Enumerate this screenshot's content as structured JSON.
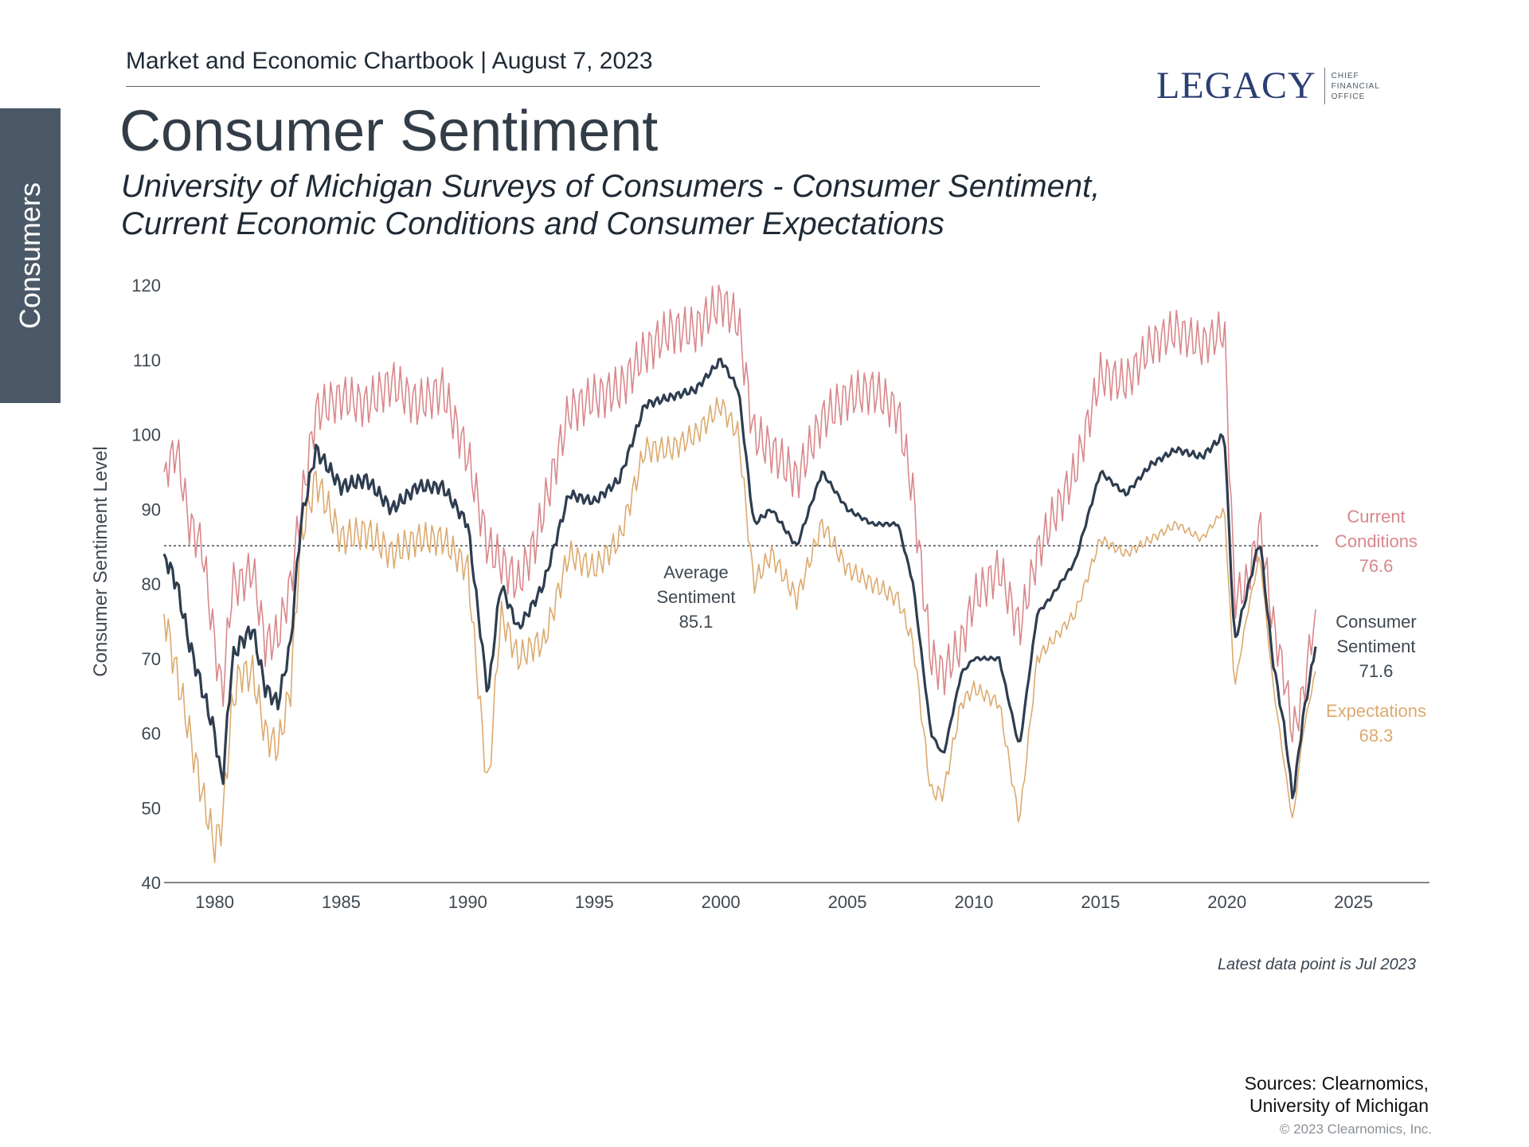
{
  "header": {
    "chartbook": "Market and Economic Chartbook | August 7, 2023",
    "logo_word": "LEGACY",
    "logo_tagline": "CHIEF\nFINANCIAL\nOFFICE"
  },
  "side_tab": {
    "label": "Consumers"
  },
  "page": {
    "title": "Consumer Sentiment",
    "subtitle_line1": "University of Michigan Surveys of Consumers - Consumer Sentiment,",
    "subtitle_line2": "Current Economic Conditions and Consumer Expectations"
  },
  "colors": {
    "sentiment": "#2e3d4f",
    "current": "#d9878b",
    "expectations": "#dcaa6f",
    "axis": "#555b61",
    "average_line": "#555b61"
  },
  "chart_data": {
    "type": "line",
    "ylabel": "Consumer Sentiment Level",
    "xlabel": "",
    "ylim": [
      40,
      120
    ],
    "xlim": [
      1978,
      2028
    ],
    "y_ticks": [
      40,
      50,
      60,
      70,
      80,
      90,
      100,
      110,
      120
    ],
    "x_ticks": [
      1980,
      1985,
      1990,
      1995,
      2000,
      2005,
      2010,
      2015,
      2020,
      2025
    ],
    "average": {
      "value": 85.1,
      "line1": "Average",
      "line2": "Sentiment",
      "line3": "85.1"
    },
    "series": [
      {
        "name": "Current Conditions",
        "label_lines": [
          "Current",
          "Conditions",
          "76.6"
        ],
        "points": [
          [
            1978,
            95
          ],
          [
            1978.5,
            98
          ],
          [
            1979,
            88
          ],
          [
            1979.5,
            85
          ],
          [
            1980,
            72
          ],
          [
            1980.3,
            65
          ],
          [
            1980.7,
            80
          ],
          [
            1981,
            80
          ],
          [
            1981.5,
            82
          ],
          [
            1982,
            72
          ],
          [
            1982.5,
            73
          ],
          [
            1983,
            80
          ],
          [
            1983.4,
            90
          ],
          [
            1984,
            103
          ],
          [
            1985,
            105
          ],
          [
            1986,
            104
          ],
          [
            1987,
            107
          ],
          [
            1988,
            104
          ],
          [
            1989,
            106
          ],
          [
            1990,
            97
          ],
          [
            1990.8,
            85
          ],
          [
            1991.3,
            83
          ],
          [
            1992,
            80
          ],
          [
            1992.7,
            86
          ],
          [
            1993,
            90
          ],
          [
            1994,
            103
          ],
          [
            1995,
            105
          ],
          [
            1996,
            106
          ],
          [
            1997,
            111
          ],
          [
            1998,
            114
          ],
          [
            1999,
            114
          ],
          [
            2000,
            118
          ],
          [
            2000.7,
            115
          ],
          [
            2001.3,
            100
          ],
          [
            2002,
            98
          ],
          [
            2003,
            94
          ],
          [
            2004,
            102
          ],
          [
            2005,
            105
          ],
          [
            2006,
            106
          ],
          [
            2007,
            103
          ],
          [
            2007.6,
            92
          ],
          [
            2008.3,
            70
          ],
          [
            2008.8,
            68
          ],
          [
            2009.5,
            72
          ],
          [
            2010,
            78
          ],
          [
            2011,
            82
          ],
          [
            2011.8,
            74
          ],
          [
            2012.5,
            84
          ],
          [
            2013,
            88
          ],
          [
            2014,
            95
          ],
          [
            2015,
            108
          ],
          [
            2016,
            107
          ],
          [
            2017,
            112
          ],
          [
            2018,
            114
          ],
          [
            2019,
            112
          ],
          [
            2019.9,
            114
          ],
          [
            2020.3,
            78
          ],
          [
            2020.8,
            80
          ],
          [
            2021.3,
            88
          ],
          [
            2021.8,
            75
          ],
          [
            2022.3,
            67
          ],
          [
            2022.6,
            60
          ],
          [
            2023,
            65
          ],
          [
            2023.5,
            76.6
          ]
        ]
      },
      {
        "name": "Consumer Sentiment",
        "label_lines": [
          "Consumer",
          "Sentiment",
          "71.6"
        ],
        "points": [
          [
            1978,
            84
          ],
          [
            1978.5,
            80
          ],
          [
            1979,
            72
          ],
          [
            1979.5,
            66
          ],
          [
            1980,
            60
          ],
          [
            1980.3,
            53
          ],
          [
            1980.7,
            70
          ],
          [
            1981,
            72
          ],
          [
            1981.5,
            74
          ],
          [
            1982,
            66
          ],
          [
            1982.5,
            64
          ],
          [
            1983,
            72
          ],
          [
            1983.4,
            88
          ],
          [
            1984,
            98
          ],
          [
            1985,
            93
          ],
          [
            1986,
            94
          ],
          [
            1987,
            90
          ],
          [
            1988,
            93
          ],
          [
            1989,
            93
          ],
          [
            1990,
            88
          ],
          [
            1990.8,
            65
          ],
          [
            1991.3,
            80
          ],
          [
            1992,
            74
          ],
          [
            1992.7,
            78
          ],
          [
            1993,
            80
          ],
          [
            1994,
            92
          ],
          [
            1995,
            91
          ],
          [
            1996,
            94
          ],
          [
            1997,
            104
          ],
          [
            1998,
            105
          ],
          [
            1999,
            106
          ],
          [
            2000,
            110
          ],
          [
            2000.7,
            106
          ],
          [
            2001.3,
            88
          ],
          [
            2002,
            90
          ],
          [
            2003,
            85
          ],
          [
            2004,
            95
          ],
          [
            2005,
            90
          ],
          [
            2006,
            88
          ],
          [
            2007,
            88
          ],
          [
            2007.6,
            80
          ],
          [
            2008.3,
            60
          ],
          [
            2008.8,
            57
          ],
          [
            2009.5,
            68
          ],
          [
            2010,
            70
          ],
          [
            2011,
            70
          ],
          [
            2011.8,
            58
          ],
          [
            2012.5,
            76
          ],
          [
            2013,
            78
          ],
          [
            2014,
            83
          ],
          [
            2015,
            95
          ],
          [
            2016,
            92
          ],
          [
            2017,
            96
          ],
          [
            2018,
            98
          ],
          [
            2019,
            97
          ],
          [
            2019.9,
            100
          ],
          [
            2020.3,
            72
          ],
          [
            2020.8,
            79
          ],
          [
            2021.3,
            86
          ],
          [
            2021.8,
            70
          ],
          [
            2022.3,
            60
          ],
          [
            2022.6,
            51
          ],
          [
            2023,
            62
          ],
          [
            2023.5,
            71.6
          ]
        ]
      },
      {
        "name": "Expectations",
        "label_lines": [
          "Expectations",
          "68.3"
        ],
        "points": [
          [
            1978,
            76
          ],
          [
            1978.5,
            68
          ],
          [
            1979,
            60
          ],
          [
            1979.5,
            52
          ],
          [
            1980,
            45
          ],
          [
            1980.3,
            48
          ],
          [
            1980.7,
            64
          ],
          [
            1981,
            68
          ],
          [
            1981.5,
            68
          ],
          [
            1982,
            60
          ],
          [
            1982.5,
            58
          ],
          [
            1983,
            66
          ],
          [
            1983.4,
            86
          ],
          [
            1984,
            94
          ],
          [
            1985,
            86
          ],
          [
            1986,
            87
          ],
          [
            1987,
            84
          ],
          [
            1988,
            86
          ],
          [
            1989,
            86
          ],
          [
            1990,
            82
          ],
          [
            1990.8,
            52
          ],
          [
            1991.3,
            76
          ],
          [
            1992,
            70
          ],
          [
            1992.7,
            72
          ],
          [
            1993,
            72
          ],
          [
            1994,
            84
          ],
          [
            1995,
            82
          ],
          [
            1996,
            86
          ],
          [
            1997,
            98
          ],
          [
            1998,
            98
          ],
          [
            1999,
            100
          ],
          [
            2000,
            104
          ],
          [
            2000.7,
            100
          ],
          [
            2001.3,
            80
          ],
          [
            2002,
            84
          ],
          [
            2003,
            78
          ],
          [
            2004,
            88
          ],
          [
            2005,
            82
          ],
          [
            2006,
            80
          ],
          [
            2007,
            78
          ],
          [
            2007.6,
            72
          ],
          [
            2008.3,
            52
          ],
          [
            2008.8,
            52
          ],
          [
            2009.5,
            64
          ],
          [
            2010,
            66
          ],
          [
            2011,
            64
          ],
          [
            2011.8,
            48
          ],
          [
            2012.5,
            70
          ],
          [
            2013,
            72
          ],
          [
            2014,
            76
          ],
          [
            2015,
            86
          ],
          [
            2016,
            84
          ],
          [
            2017,
            86
          ],
          [
            2018,
            88
          ],
          [
            2019,
            86
          ],
          [
            2019.9,
            90
          ],
          [
            2020.3,
            66
          ],
          [
            2020.8,
            76
          ],
          [
            2021.3,
            84
          ],
          [
            2021.8,
            67
          ],
          [
            2022.3,
            55
          ],
          [
            2022.6,
            48
          ],
          [
            2023,
            60
          ],
          [
            2023.5,
            68.3
          ]
        ]
      }
    ]
  },
  "footer": {
    "latest": "Latest data point is Jul 2023",
    "sources_line1": "Sources: Clearnomics,",
    "sources_line2": "University of Michigan",
    "copyright": "© 2023 Clearnomics, Inc."
  }
}
